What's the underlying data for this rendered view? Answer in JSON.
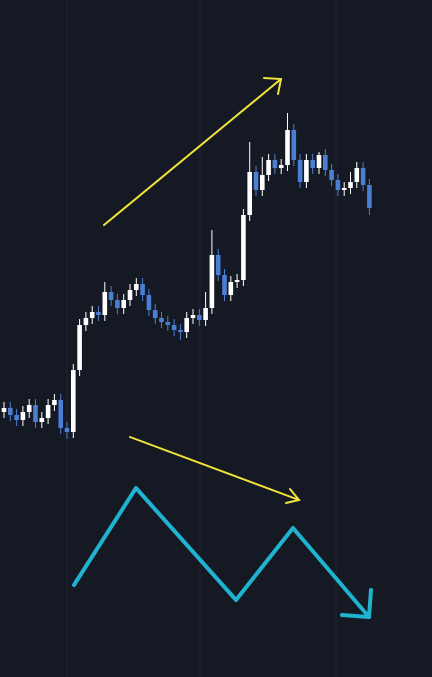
{
  "chart_data": {
    "type": "candlestick",
    "open": [
      265,
      269,
      262,
      257,
      265,
      272,
      255,
      259,
      272,
      277,
      249,
      245,
      307,
      352,
      359,
      365,
      362,
      385,
      377,
      369,
      377,
      387,
      393,
      382,
      367,
      359,
      355,
      352,
      347,
      345,
      359,
      362,
      357,
      369,
      422,
      402,
      382,
      395,
      397,
      462,
      505,
      487,
      502,
      517,
      509,
      512,
      547,
      517,
      495,
      517,
      509,
      522,
      507,
      497,
      487,
      489,
      495,
      509,
      492
    ],
    "high": [
      275,
      275,
      268,
      271,
      278,
      278,
      265,
      278,
      283,
      283,
      255,
      313,
      358,
      365,
      371,
      371,
      395,
      391,
      383,
      383,
      393,
      399,
      399,
      388,
      373,
      365,
      361,
      358,
      353,
      365,
      368,
      368,
      385,
      447,
      428,
      408,
      401,
      403,
      468,
      535,
      511,
      520,
      523,
      523,
      518,
      564,
      553,
      523,
      523,
      523,
      525,
      528,
      513,
      503,
      495,
      505,
      515,
      515,
      498
    ],
    "low": [
      259,
      256,
      251,
      251,
      259,
      249,
      249,
      253,
      266,
      243,
      238,
      239,
      301,
      346,
      353,
      356,
      356,
      371,
      363,
      363,
      371,
      381,
      376,
      361,
      353,
      349,
      346,
      341,
      337,
      339,
      353,
      351,
      351,
      363,
      396,
      376,
      376,
      389,
      391,
      456,
      481,
      481,
      496,
      503,
      503,
      506,
      511,
      489,
      489,
      503,
      503,
      501,
      491,
      481,
      481,
      483,
      489,
      486,
      462
    ],
    "close": [
      269,
      262,
      257,
      265,
      272,
      255,
      259,
      272,
      277,
      249,
      245,
      307,
      352,
      359,
      365,
      362,
      385,
      377,
      369,
      377,
      387,
      393,
      382,
      367,
      359,
      355,
      352,
      347,
      345,
      359,
      362,
      357,
      369,
      422,
      402,
      382,
      395,
      397,
      462,
      505,
      487,
      502,
      517,
      509,
      512,
      547,
      517,
      495,
      517,
      509,
      522,
      507,
      497,
      487,
      489,
      495,
      509,
      492,
      469
    ],
    "ylim": [
      0,
      677
    ],
    "up_color": "#ffffff",
    "down_color": "#4a7fd4"
  }
}
